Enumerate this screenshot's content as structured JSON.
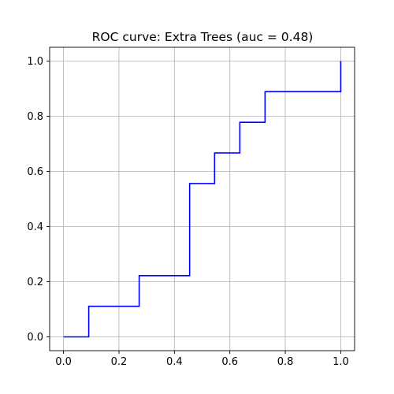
{
  "chart_data": {
    "type": "line",
    "title": "ROC curve: Extra Trees (auc = 0.48)",
    "xlabel": "",
    "ylabel": "",
    "xlim": [
      -0.05,
      1.05
    ],
    "ylim": [
      -0.05,
      1.05
    ],
    "x_ticks": [
      "0.0",
      "0.2",
      "0.4",
      "0.6",
      "0.8",
      "1.0"
    ],
    "y_ticks": [
      "0.0",
      "0.2",
      "0.4",
      "0.6",
      "0.8",
      "1.0"
    ],
    "grid": true,
    "series": [
      {
        "color": "#0000ff",
        "x": [
          0.0,
          0.091,
          0.091,
          0.273,
          0.273,
          0.455,
          0.455,
          0.545,
          0.545,
          0.636,
          0.636,
          0.727,
          0.727,
          1.0,
          1.0
        ],
        "y": [
          0.0,
          0.0,
          0.111,
          0.111,
          0.222,
          0.222,
          0.556,
          0.556,
          0.667,
          0.667,
          0.778,
          0.778,
          0.889,
          0.889,
          1.0
        ]
      }
    ]
  }
}
